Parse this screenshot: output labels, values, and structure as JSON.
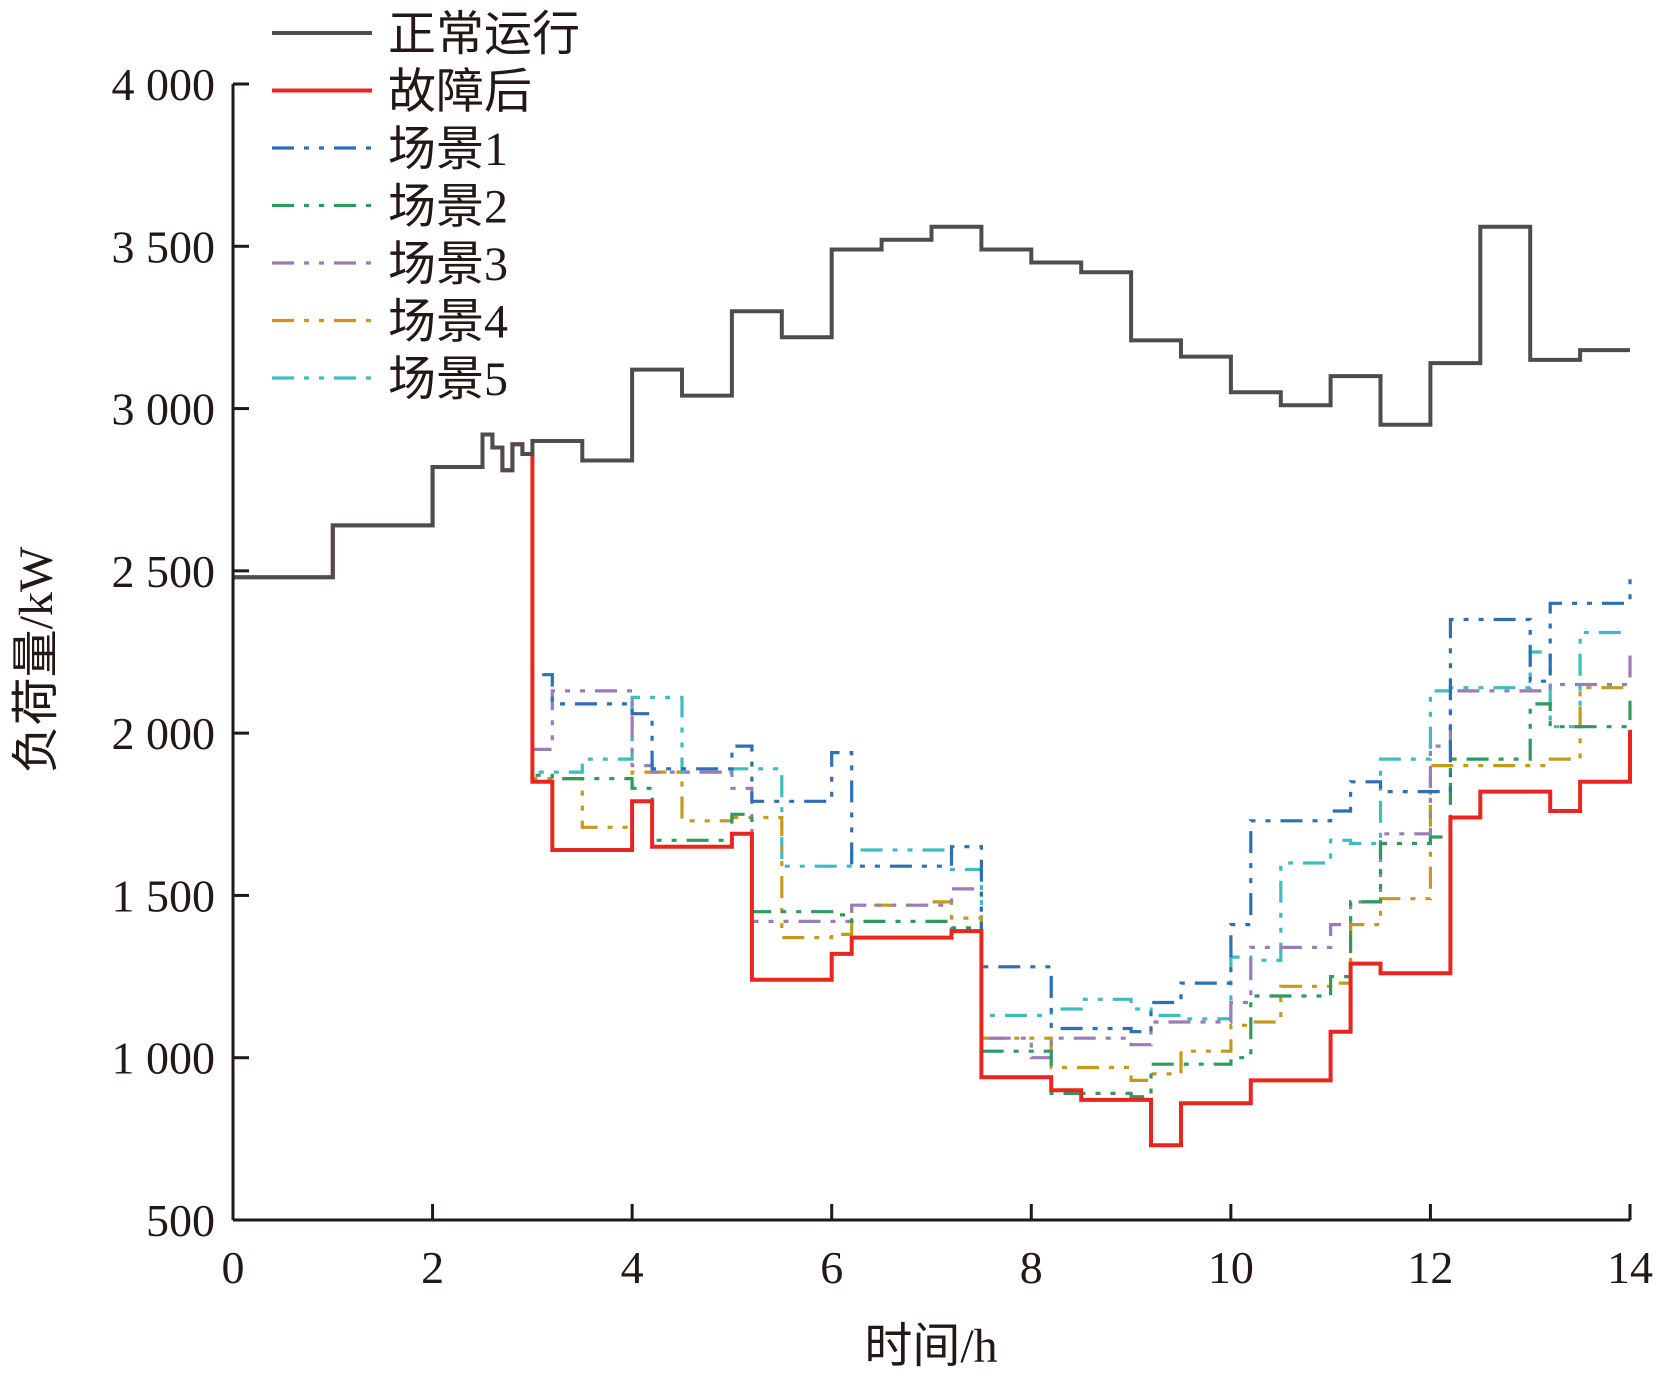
{
  "chart_data": {
    "type": "line",
    "step": true,
    "xlabel": "时间/h",
    "ylabel": "负荷量/kW",
    "xlim": [
      0,
      14
    ],
    "ylim": [
      500,
      4000
    ],
    "x_ticks": [
      0,
      2,
      4,
      6,
      8,
      10,
      12,
      14
    ],
    "x_tick_labels": [
      "0",
      "2",
      "4",
      "6",
      "8",
      "10",
      "12",
      "14"
    ],
    "y_ticks": [
      500,
      1000,
      1500,
      2000,
      2500,
      3000,
      3500,
      4000
    ],
    "y_tick_labels": [
      "500",
      "1 000",
      "1 500",
      "2 000",
      "2 500",
      "3 000",
      "3 500",
      "4 000"
    ],
    "grid": false,
    "legend_position": "top-left",
    "series": [
      {
        "name": "正常运行",
        "color": "#4d4d4d",
        "dash": "solid",
        "x": [
          0,
          1,
          2,
          2.5,
          2.6,
          2.7,
          2.8,
          2.9,
          3,
          3.5,
          4,
          4.5,
          5,
          5.5,
          6,
          6.5,
          7,
          7.5,
          8,
          8.5,
          9,
          9.5,
          10,
          10.5,
          11,
          11.5,
          12,
          12.5,
          13,
          13.5,
          14
        ],
        "y": [
          2480,
          2640,
          2820,
          2920,
          2880,
          2810,
          2890,
          2860,
          2900,
          2840,
          3120,
          3040,
          3300,
          3220,
          3490,
          3520,
          3560,
          3490,
          3450,
          3420,
          3210,
          3160,
          3050,
          3010,
          3100,
          2950,
          3140,
          3560,
          3150,
          3180,
          3180
        ]
      },
      {
        "name": "故障后",
        "color": "#e8251f",
        "dash": "solid",
        "x": [
          0,
          1,
          2,
          2.5,
          2.6,
          2.7,
          2.8,
          2.9,
          3,
          3.2,
          4,
          4.2,
          5,
          5.2,
          5.7,
          6,
          6.2,
          7.2,
          7.5,
          8,
          8.2,
          8.5,
          9,
          9.2,
          9.5,
          10,
          10.2,
          11,
          11.2,
          11.5,
          12,
          12.2,
          12.5,
          13,
          13.2,
          13.5,
          14
        ],
        "y": [
          2480,
          2640,
          2820,
          2920,
          2880,
          2810,
          2890,
          2860,
          1850,
          1640,
          1790,
          1650,
          1690,
          1240,
          1240,
          1320,
          1370,
          1390,
          940,
          940,
          900,
          870,
          870,
          730,
          860,
          860,
          930,
          1080,
          1290,
          1260,
          1260,
          1740,
          1820,
          1820,
          1760,
          1850,
          2010
        ]
      },
      {
        "name": "场景1",
        "color": "#2f6fb5",
        "dash": "dashdotdot",
        "x": [
          0,
          1,
          2,
          2.5,
          2.6,
          2.7,
          2.8,
          2.9,
          3,
          3.2,
          4,
          4.2,
          5,
          5.2,
          6,
          6.2,
          7.2,
          7.5,
          8,
          8.2,
          9,
          9.2,
          9.5,
          10,
          10.2,
          11,
          11.2,
          11.5,
          12,
          12.2,
          13,
          13.2,
          14
        ],
        "y": [
          2480,
          2640,
          2820,
          2920,
          2880,
          2810,
          2890,
          2860,
          2180,
          2090,
          2060,
          1890,
          1960,
          1790,
          1940,
          1590,
          1650,
          1280,
          1280,
          1090,
          1080,
          1170,
          1230,
          1410,
          1730,
          1760,
          1850,
          1820,
          1820,
          2350,
          2160,
          2400,
          2480
        ]
      },
      {
        "name": "场景2",
        "color": "#2e9b5c",
        "dash": "dashdotdot",
        "x": [
          0,
          1,
          2,
          2.5,
          2.6,
          2.7,
          2.8,
          2.9,
          3,
          3.2,
          4,
          4.2,
          5,
          5.2,
          6,
          6.2,
          7.2,
          7.5,
          8,
          8.2,
          9,
          9.2,
          9.5,
          10,
          10.2,
          11,
          11.2,
          11.5,
          12,
          12.2,
          13,
          13.2,
          14
        ],
        "y": [
          2480,
          2640,
          2820,
          2920,
          2880,
          2810,
          2890,
          2860,
          1870,
          1860,
          1830,
          1670,
          1750,
          1450,
          1440,
          1420,
          1400,
          1020,
          1020,
          890,
          880,
          980,
          980,
          1000,
          1190,
          1250,
          1480,
          1660,
          1680,
          1920,
          2090,
          2020,
          2100
        ]
      },
      {
        "name": "场景3",
        "color": "#9b7bb8",
        "dash": "dashdotdot",
        "x": [
          0,
          1,
          2,
          2.5,
          2.6,
          2.7,
          2.8,
          2.9,
          3,
          3.2,
          4,
          4.2,
          5,
          5.2,
          6,
          6.2,
          7.2,
          7.5,
          8,
          8.2,
          9,
          9.2,
          9.5,
          10,
          10.2,
          11,
          11.2,
          11.5,
          12,
          12.2,
          13,
          13.2,
          14
        ],
        "y": [
          2480,
          2640,
          2820,
          2920,
          2880,
          2810,
          2890,
          2860,
          1950,
          2130,
          1900,
          1880,
          1830,
          1420,
          1420,
          1470,
          1520,
          1060,
          1000,
          1060,
          1040,
          1110,
          1110,
          1170,
          1340,
          1410,
          1480,
          1690,
          1960,
          2130,
          2130,
          2150,
          2240
        ]
      },
      {
        "name": "场景4",
        "color": "#c49a1e",
        "dash": "dashdotdot",
        "x": [
          0,
          1,
          2,
          2.5,
          2.6,
          2.7,
          2.8,
          2.9,
          3,
          3.2,
          3.5,
          4,
          4.2,
          4.5,
          5,
          5.2,
          5.5,
          6,
          6.2,
          7,
          7.2,
          7.5,
          8,
          8.2,
          8.5,
          9,
          9.2,
          9.5,
          10,
          10.2,
          10.5,
          11,
          11.2,
          11.5,
          12,
          12.2,
          13,
          13.2,
          13.5,
          14
        ],
        "y": [
          2480,
          2640,
          2820,
          2920,
          2880,
          2810,
          2890,
          2860,
          1860,
          1860,
          1710,
          1880,
          1880,
          1730,
          1740,
          1740,
          1370,
          1380,
          1470,
          1480,
          1430,
          1060,
          1060,
          970,
          970,
          930,
          950,
          1020,
          1100,
          1110,
          1220,
          1230,
          1410,
          1490,
          1900,
          1900,
          1900,
          1920,
          2140,
          2140
        ]
      },
      {
        "name": "场景5",
        "color": "#3fbcbf",
        "dash": "dashdotdot",
        "x": [
          0,
          1,
          2,
          2.5,
          2.6,
          2.7,
          2.8,
          2.9,
          3,
          3.2,
          3.5,
          4,
          4.2,
          4.5,
          5,
          5.2,
          5.5,
          6,
          6.2,
          7,
          7.2,
          7.5,
          8,
          8.2,
          8.5,
          9,
          9.2,
          9.5,
          10,
          10.2,
          10.5,
          11,
          11.2,
          11.5,
          12,
          12.2,
          13,
          13.2,
          13.5,
          14
        ],
        "y": [
          2480,
          2640,
          2820,
          2920,
          2880,
          2810,
          2890,
          2860,
          1880,
          1880,
          1920,
          2110,
          2110,
          1880,
          1890,
          1890,
          1590,
          1590,
          1640,
          1640,
          1580,
          1130,
          1130,
          1150,
          1180,
          1150,
          1130,
          1120,
          1310,
          1300,
          1600,
          1670,
          1660,
          1920,
          2130,
          2140,
          2250,
          2020,
          2310,
          2310
        ]
      }
    ]
  }
}
